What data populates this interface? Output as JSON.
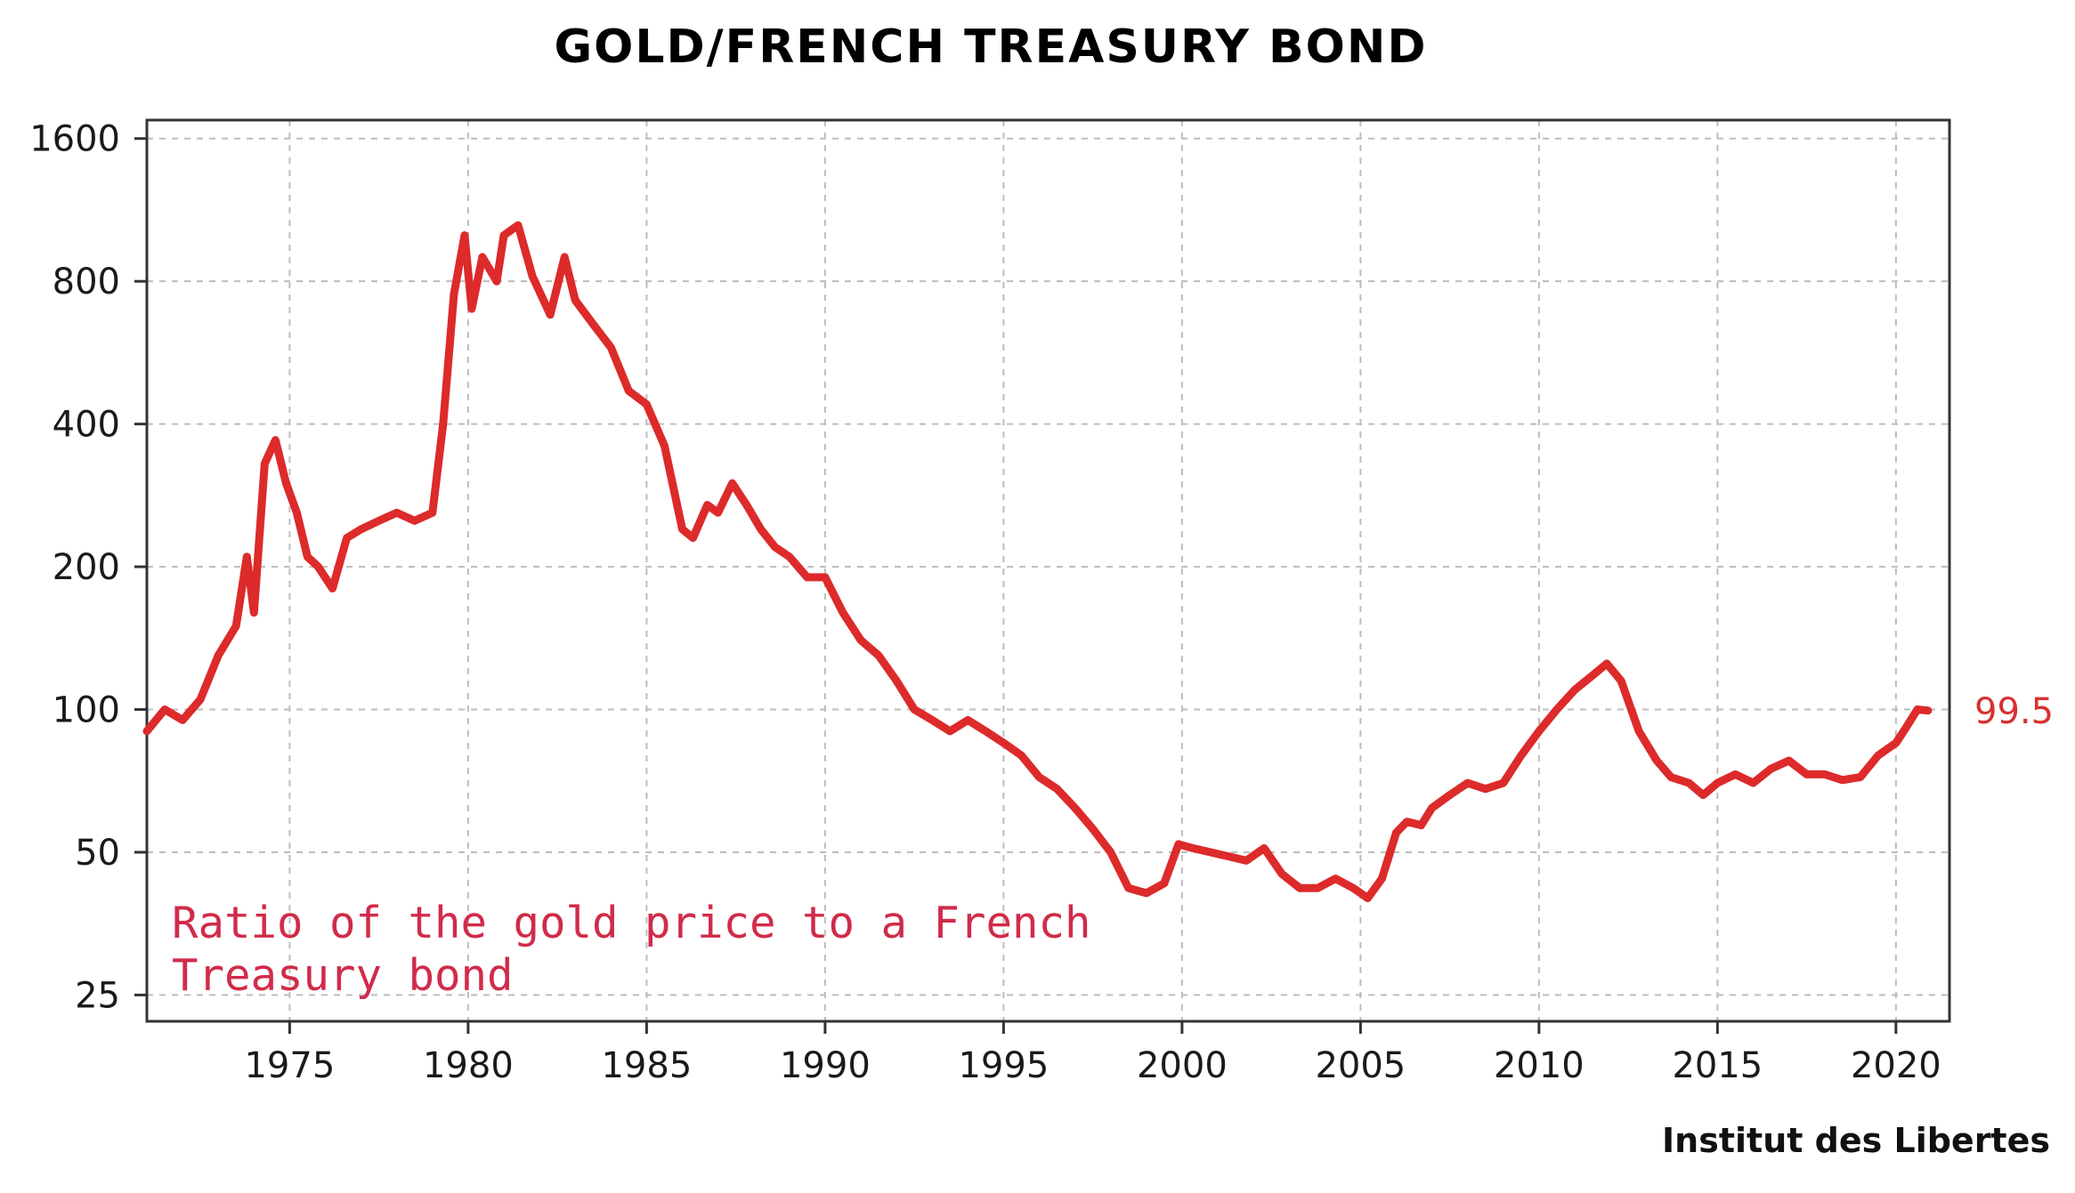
{
  "chart_data": {
    "type": "line",
    "title": "GOLD/FRENCH TREASURY BOND",
    "annotation_line1": "Ratio of the gold price to a French",
    "annotation_line2": "Treasury bond",
    "end_value_label": "99.5",
    "source": "Institut des Libertes",
    "xlabel": "",
    "ylabel": "",
    "x_ticks": [
      "1975",
      "1980",
      "1985",
      "1990",
      "1995",
      "2000",
      "2005",
      "2010",
      "2015",
      "2020"
    ],
    "y_ticks": [
      "1600",
      "800",
      "400",
      "200",
      "100",
      "50",
      "25"
    ],
    "y_scale": "log",
    "xlim": [
      1971.0,
      2021.5
    ],
    "ylim": [
      22,
      1750
    ],
    "grid": true,
    "line_color": "#dd2a2a",
    "series": [
      {
        "x": [
          1971.0,
          1971.5,
          1972.0,
          1972.5,
          1973.0,
          1973.5,
          1973.8,
          1974.0,
          1974.3,
          1974.6,
          1974.9,
          1975.2,
          1975.5,
          1975.8,
          1976.2,
          1976.6,
          1977.0,
          1977.5,
          1978.0,
          1978.5,
          1979.0,
          1979.3,
          1979.6,
          1979.9,
          1980.1,
          1980.4,
          1980.8,
          1981.0,
          1981.4,
          1981.8,
          1982.3,
          1982.7,
          1983.0,
          1983.5,
          1984.0,
          1984.5,
          1985.0,
          1985.5,
          1986.0,
          1986.3,
          1986.7,
          1987.0,
          1987.4,
          1987.8,
          1988.2,
          1988.6,
          1989.0,
          1989.5,
          1990.0,
          1990.5,
          1991.0,
          1991.5,
          1992.0,
          1992.5,
          1993.0,
          1993.5,
          1994.0,
          1994.5,
          1995.0,
          1995.5,
          1996.0,
          1996.5,
          1997.0,
          1997.5,
          1998.0,
          1998.5,
          1999.0,
          1999.5,
          1999.9,
          2000.3,
          2000.8,
          2001.3,
          2001.8,
          2002.3,
          2002.8,
          2003.3,
          2003.8,
          2004.3,
          2004.8,
          2005.2,
          2005.6,
          2006.0,
          2006.3,
          2006.7,
          2007.0,
          2007.5,
          2008.0,
          2008.5,
          2009.0,
          2009.5,
          2010.0,
          2010.5,
          2011.0,
          2011.5,
          2011.9,
          2012.3,
          2012.8,
          2013.3,
          2013.7,
          2014.2,
          2014.6,
          2015.0,
          2015.5,
          2016.0,
          2016.5,
          2017.0,
          2017.5,
          2018.0,
          2018.5,
          2019.0,
          2019.5,
          2020.0,
          2020.3,
          2020.6,
          2020.9
        ],
        "values": [
          90,
          100,
          95,
          105,
          130,
          150,
          210,
          160,
          330,
          370,
          300,
          260,
          210,
          200,
          180,
          230,
          240,
          250,
          260,
          250,
          260,
          400,
          750,
          1000,
          700,
          900,
          800,
          1000,
          1050,
          820,
          680,
          900,
          730,
          650,
          580,
          470,
          440,
          360,
          240,
          230,
          270,
          260,
          300,
          270,
          240,
          220,
          210,
          190,
          190,
          160,
          140,
          130,
          115,
          100,
          95,
          90,
          95,
          90,
          85,
          80,
          72,
          68,
          62,
          56,
          50,
          42,
          41,
          43,
          52,
          51,
          50,
          49,
          48,
          51,
          45,
          42,
          42,
          44,
          42,
          40,
          44,
          55,
          58,
          57,
          62,
          66,
          70,
          68,
          70,
          80,
          90,
          100,
          110,
          118,
          125,
          115,
          90,
          78,
          72,
          70,
          66,
          70,
          73,
          70,
          75,
          78,
          73,
          73,
          71,
          72,
          80,
          85,
          92,
          100,
          99.5
        ]
      }
    ]
  }
}
